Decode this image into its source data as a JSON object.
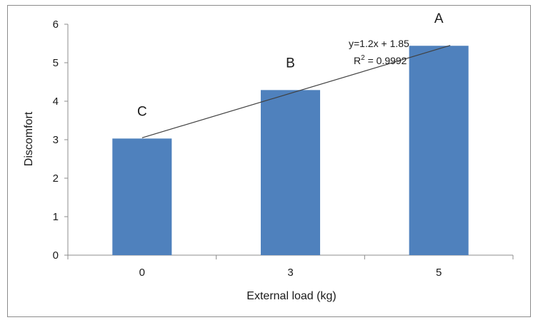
{
  "chart_data": {
    "type": "bar",
    "title": "",
    "xlabel": "External load (kg)",
    "ylabel": "Discomfort",
    "categories": [
      "0",
      "3",
      "5"
    ],
    "values": [
      3.03,
      4.29,
      5.44
    ],
    "bar_labels": [
      "C",
      "B",
      "A"
    ],
    "ylim": [
      0,
      6
    ],
    "yticks": [
      "0",
      "1",
      "2",
      "3",
      "4",
      "5",
      "6"
    ],
    "grid": false,
    "legend": "none",
    "bar_color": "#4f81bd",
    "trendline": {
      "equation": "y=1.2x + 1.85",
      "r2_prefix": "R",
      "r2_sup": "2",
      "r2_value": " = 0.9992",
      "start_value": 3.05,
      "end_value": 5.45,
      "color": "#404040"
    }
  }
}
